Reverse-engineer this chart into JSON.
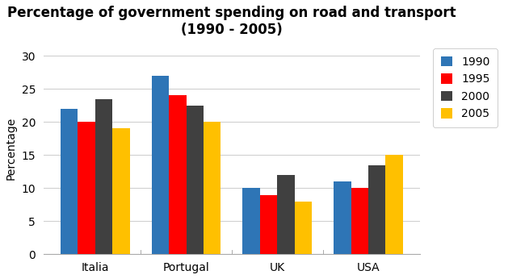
{
  "title_line1": "Percentage of government spending on road and transport",
  "title_line2": "(1990 - 2005)",
  "categories": [
    "Italia",
    "Portugal",
    "UK",
    "USA"
  ],
  "years": [
    "1990",
    "1995",
    "2000",
    "2005"
  ],
  "values": {
    "1990": [
      22,
      27,
      10,
      11
    ],
    "1995": [
      20,
      24,
      9,
      10
    ],
    "2000": [
      23.5,
      22.5,
      12,
      13.5
    ],
    "2005": [
      19,
      20,
      8,
      15
    ]
  },
  "bar_colors": {
    "1990": "#2E75B6",
    "1995": "#FF0000",
    "2000": "#404040",
    "2005": "#FFC000"
  },
  "ylabel": "Percentage",
  "ylim": [
    0,
    32
  ],
  "yticks": [
    0,
    5,
    10,
    15,
    20,
    25,
    30
  ],
  "bar_width": 0.19,
  "title_fontsize": 12,
  "axis_label_fontsize": 10,
  "tick_fontsize": 10,
  "legend_fontsize": 10,
  "background_color": "#ffffff"
}
